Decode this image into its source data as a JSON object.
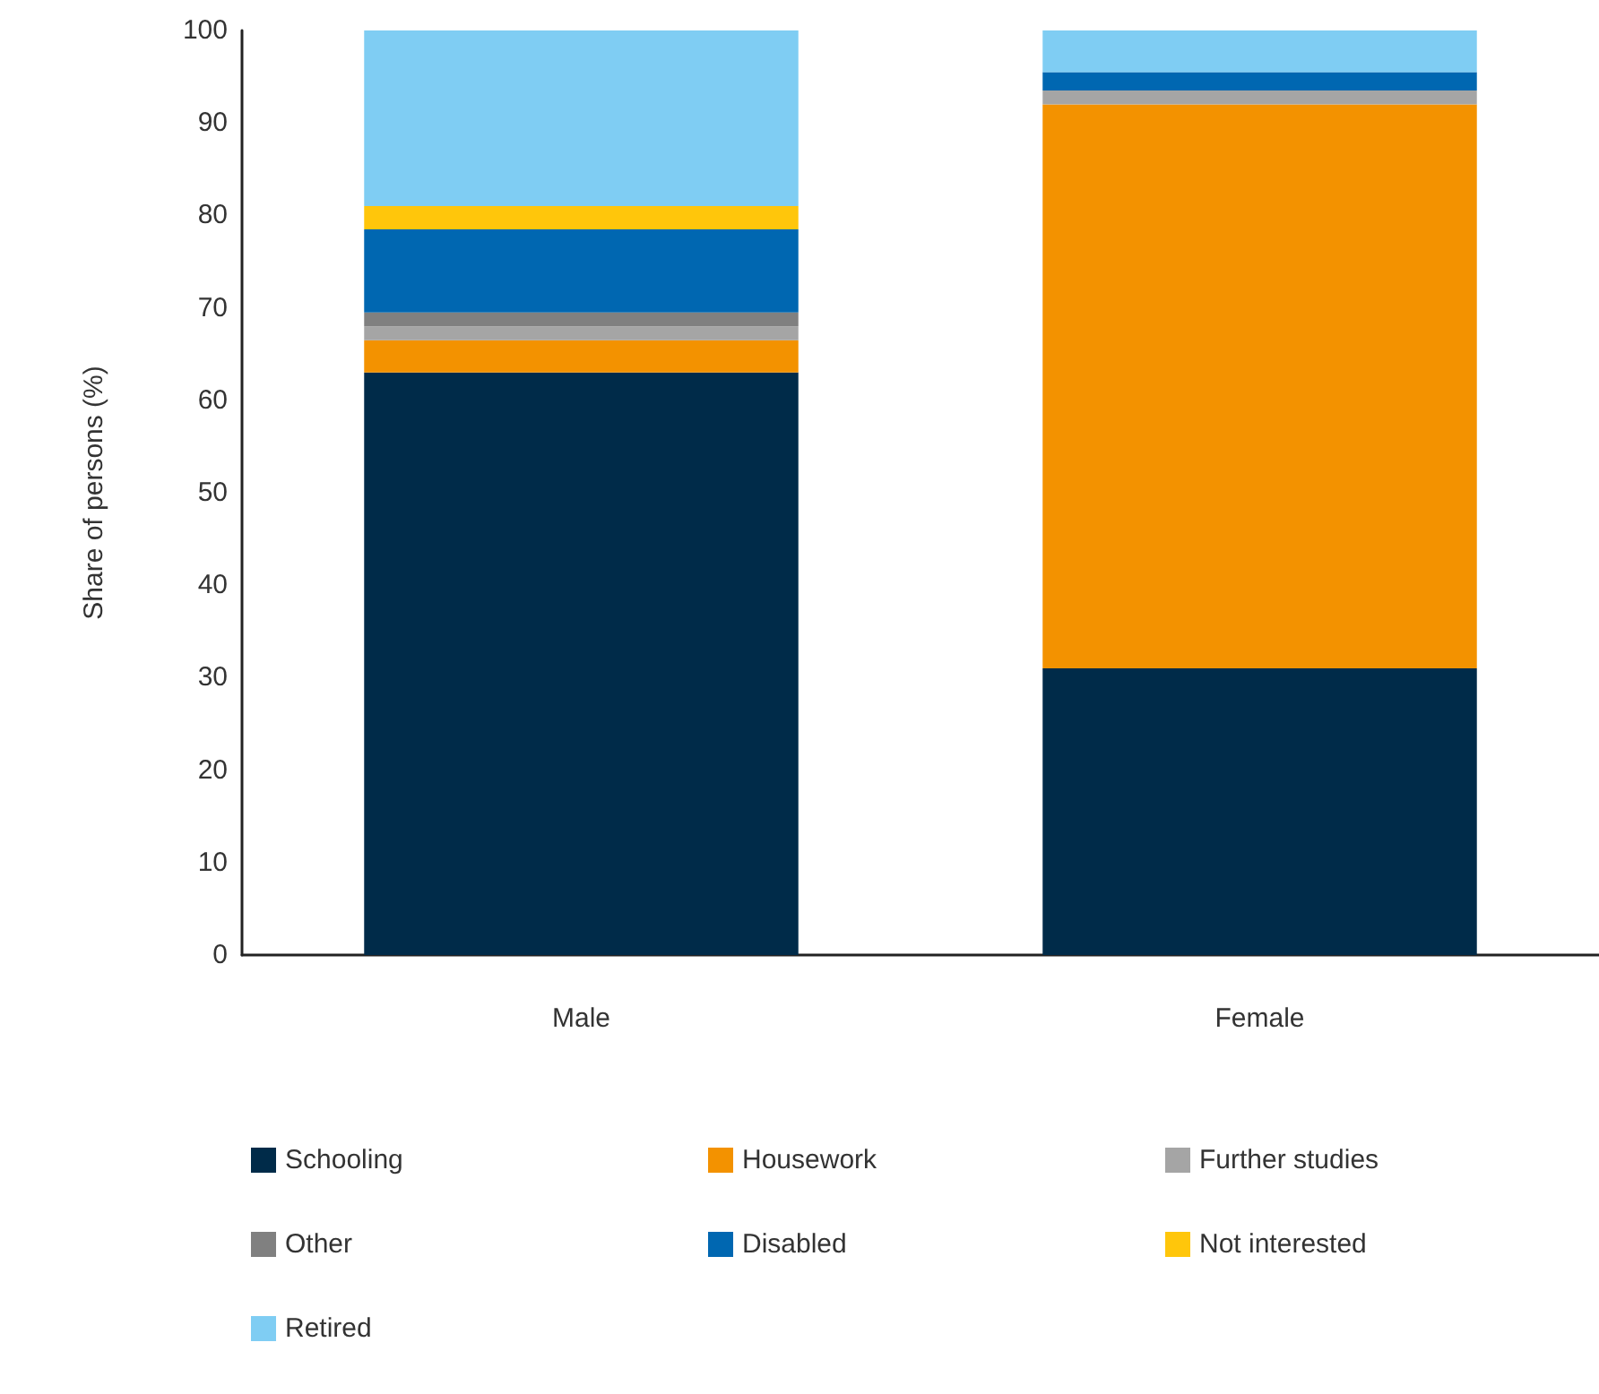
{
  "chart_data": {
    "type": "bar",
    "stacked": true,
    "ylabel": "Share of persons (%)",
    "categories": [
      "Male",
      "Female"
    ],
    "series": [
      {
        "name": "Schooling",
        "color": "#002b49",
        "values": [
          63,
          31
        ]
      },
      {
        "name": "Housework",
        "color": "#f39200",
        "values": [
          3.5,
          61
        ]
      },
      {
        "name": "Further studies",
        "color": "#a5a5a5",
        "values": [
          1.5,
          1.5
        ]
      },
      {
        "name": "Other",
        "color": "#808080",
        "values": [
          1.5,
          0
        ]
      },
      {
        "name": "Disabled",
        "color": "#0067b1",
        "values": [
          9,
          2
        ]
      },
      {
        "name": "Not interested",
        "color": "#ffc60b",
        "values": [
          2.5,
          0
        ]
      },
      {
        "name": "Retired",
        "color": "#7fcdf3",
        "values": [
          19,
          4.5
        ]
      }
    ],
    "ylim": [
      0,
      100
    ],
    "yticks": [
      0,
      10,
      20,
      30,
      40,
      50,
      60,
      70,
      80,
      90,
      100
    ],
    "grid": false,
    "legend": "bottom"
  }
}
